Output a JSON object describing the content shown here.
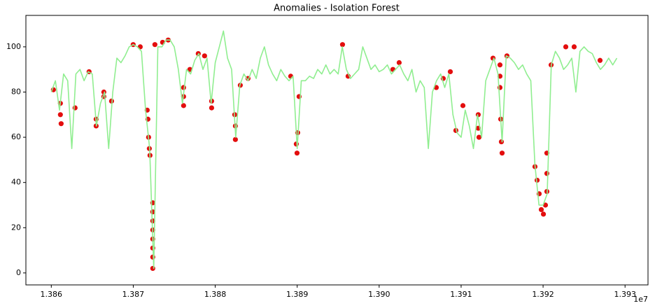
{
  "chart_data": {
    "type": "line",
    "title": "Anomalies - Isolation Forest",
    "x_offset_label": "1e7",
    "xlim": [
      13856900,
      13932800
    ],
    "ylim": [
      -5.3,
      113.9
    ],
    "xticks": [
      {
        "value": 13860000,
        "label": "1.386"
      },
      {
        "value": 13870000,
        "label": "1.387"
      },
      {
        "value": 13880000,
        "label": "1.388"
      },
      {
        "value": 13890000,
        "label": "1.389"
      },
      {
        "value": 13900000,
        "label": "1.390"
      },
      {
        "value": 13910000,
        "label": "1.391"
      },
      {
        "value": 13920000,
        "label": "1.392"
      },
      {
        "value": 13930000,
        "label": "1.393"
      }
    ],
    "yticks": [
      0,
      20,
      40,
      60,
      80,
      100
    ],
    "series": [
      {
        "type": "scatter",
        "color": "#e30e0e",
        "x": [
          13860260,
          13861110,
          13861110,
          13861200,
          13862900,
          13864610,
          13865470,
          13865470,
          13866410,
          13866410,
          13867350,
          13869990,
          13870850,
          13871700,
          13871790,
          13871870,
          13871960,
          13872040,
          13872380,
          13872380,
          13872380,
          13872380,
          13872380,
          13872380,
          13872380,
          13872380,
          13872640,
          13873580,
          13874260,
          13876140,
          13876140,
          13876140,
          13876910,
          13877930,
          13878700,
          13879560,
          13879560,
          13882380,
          13882460,
          13882460,
          13883060,
          13884000,
          13889210,
          13889890,
          13889980,
          13890060,
          13890230,
          13895530,
          13896210,
          13901680,
          13902440,
          13906970,
          13907820,
          13908680,
          13909360,
          13910220,
          13912090,
          13912090,
          13912180,
          13913890,
          13914740,
          13914740,
          13914740,
          13914830,
          13914910,
          13915000,
          13915590,
          13919010,
          13919270,
          13919520,
          13919780,
          13920040,
          13920290,
          13920460,
          13920460,
          13920460,
          13920980,
          13922770,
          13923790,
          13926950
        ],
        "values": [
          81,
          75,
          70,
          66,
          73,
          89,
          65,
          68,
          80,
          78,
          76,
          101,
          100,
          72,
          68,
          60,
          55,
          52,
          31,
          27,
          23,
          19,
          15,
          11,
          7,
          2,
          101,
          102,
          103,
          82,
          78,
          74,
          90,
          97,
          96,
          76,
          73,
          70,
          65,
          59,
          83,
          86,
          87,
          57,
          53,
          62,
          78,
          101,
          87,
          90,
          93,
          82,
          86,
          89,
          63,
          74,
          70,
          64,
          60,
          95,
          92,
          87,
          82,
          68,
          58,
          53,
          96,
          47,
          41,
          35,
          28,
          26,
          30,
          36,
          44,
          53,
          92,
          100,
          100,
          94
        ]
      },
      {
        "type": "line",
        "color": "#90ee90",
        "x": [
          13860000,
          13860500,
          13861000,
          13861500,
          13862000,
          13862500,
          13863000,
          13863500,
          13864000,
          13864500,
          13865000,
          13865500,
          13866000,
          13866500,
          13867000,
          13867500,
          13868000,
          13868500,
          13869000,
          13869500,
          13870000,
          13870500,
          13871000,
          13871500,
          13872000,
          13872500,
          13873000,
          13873500,
          13874000,
          13874500,
          13875000,
          13875500,
          13876000,
          13876500,
          13877000,
          13877500,
          13878000,
          13878500,
          13879000,
          13879500,
          13880000,
          13880500,
          13881000,
          13881500,
          13882000,
          13882500,
          13883000,
          13883500,
          13884000,
          13884500,
          13885000,
          13885500,
          13886000,
          13886500,
          13887000,
          13887500,
          13888000,
          13888500,
          13889000,
          13889500,
          13890000,
          13890500,
          13891000,
          13891500,
          13892000,
          13892500,
          13893000,
          13893500,
          13894000,
          13894500,
          13895000,
          13895500,
          13896000,
          13896500,
          13897000,
          13897500,
          13898000,
          13898500,
          13899000,
          13899500,
          13900000,
          13900500,
          13901000,
          13901500,
          13902000,
          13902500,
          13903000,
          13903500,
          13904000,
          13904500,
          13905000,
          13905500,
          13906000,
          13906500,
          13907000,
          13907500,
          13908000,
          13908500,
          13909000,
          13909500,
          13910000,
          13910500,
          13911000,
          13911500,
          13912000,
          13912500,
          13913000,
          13913500,
          13914000,
          13914500,
          13915000,
          13915500,
          13916000,
          13916500,
          13917000,
          13917500,
          13918000,
          13918500,
          13919000,
          13919500,
          13920000,
          13920500,
          13921000,
          13921500,
          13922000,
          13922500,
          13923000,
          13923500,
          13924000,
          13924500,
          13925000,
          13925500,
          13926000,
          13926500,
          13927000,
          13927500,
          13928000,
          13928500,
          13929000
        ],
        "values": [
          80,
          85,
          72,
          88,
          85,
          55,
          88,
          90,
          85,
          89,
          88,
          65,
          75,
          80,
          55,
          80,
          95,
          93,
          96,
          100,
          101,
          100,
          98,
          72,
          55,
          2,
          100,
          100,
          103,
          103,
          100,
          90,
          75,
          90,
          88,
          94,
          97,
          90,
          95,
          75,
          93,
          100,
          107,
          95,
          90,
          60,
          83,
          88,
          85,
          90,
          86,
          95,
          100,
          92,
          88,
          85,
          90,
          87,
          85,
          87,
          55,
          85,
          85,
          87,
          86,
          90,
          88,
          92,
          88,
          90,
          88,
          100,
          90,
          86,
          88,
          90,
          100,
          95,
          90,
          92,
          89,
          90,
          92,
          88,
          90,
          92,
          88,
          85,
          90,
          80,
          85,
          82,
          55,
          80,
          85,
          88,
          82,
          88,
          70,
          62,
          60,
          72,
          65,
          55,
          70,
          60,
          85,
          90,
          95,
          88,
          58,
          96,
          95,
          93,
          90,
          92,
          88,
          85,
          48,
          30,
          30,
          35,
          92,
          98,
          95,
          90,
          92,
          95,
          80,
          98,
          100,
          98,
          97,
          93,
          90,
          92,
          95,
          92,
          95
        ]
      }
    ]
  }
}
